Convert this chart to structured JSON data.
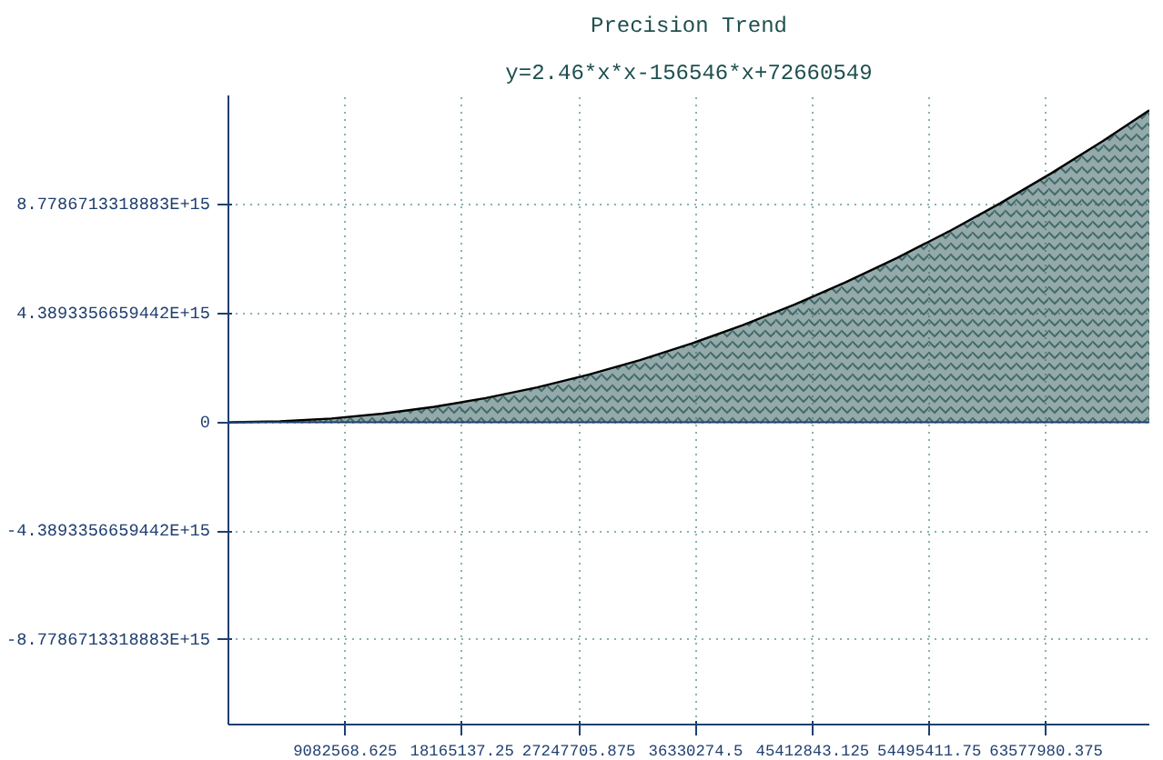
{
  "chart_data": {
    "type": "area",
    "title": "Precision Trend",
    "subtitle": "y=2.46*x*x-156546*x+72660549",
    "x": [
      0,
      4000000,
      8000000,
      12000000,
      16000000,
      20000000,
      24000000,
      28000000,
      32000000,
      36000000,
      40000000,
      44000000,
      48000000,
      52000000,
      56000000,
      60000000,
      64000000,
      68000000,
      71600000
    ],
    "series": [
      {
        "color": "#3c6464",
        "values": [
          0,
          39000000000000,
          156000000000000,
          352000000000000,
          627000000000000,
          981000000000000,
          1413000000000000,
          1924000000000000,
          2514000000000000,
          3183000000000000,
          3930000000000000,
          4756000000000000,
          5660000000000000,
          6644000000000000,
          7706000000000000,
          8847000000000000,
          10066000000000000,
          11364000000000000,
          12600000000000000
        ]
      }
    ],
    "xlim": [
      0,
      71600000
    ],
    "ylim": [
      -12200000000000000,
      13200000000000000
    ],
    "xticks": [
      9082568.625,
      18165137.25,
      27247705.875,
      36330274.5,
      45412843.125,
      54495411.75,
      63577980.375
    ],
    "yticks": [
      {
        "value": -8778671331888300,
        "label": "-8.7786713318883E+15"
      },
      {
        "value": -4389335665944200,
        "label": "-4.3893356659442E+15"
      },
      0,
      {
        "value": 4389335665944200,
        "label": "4.3893356659442E+15"
      },
      {
        "value": 8778671331888300,
        "label": "8.7786713318883E+15"
      }
    ],
    "ref_lines": [
      {
        "axis": "y",
        "value": 0,
        "color": "#1f3f6f"
      }
    ],
    "grid": true
  }
}
